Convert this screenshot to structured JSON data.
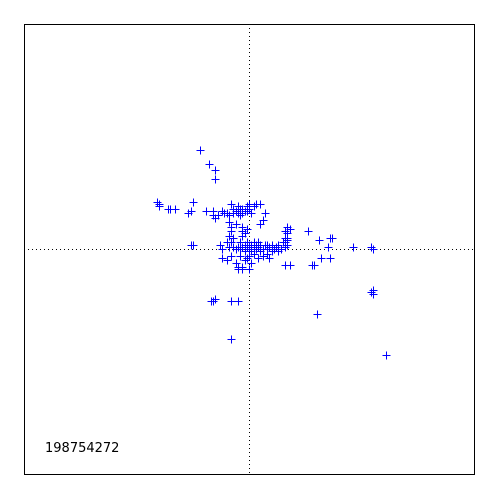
{
  "chart_data": {
    "type": "scatter",
    "title": "",
    "xlabel": "",
    "ylabel": "",
    "xlim": [
      -1,
      1
    ],
    "ylim": [
      -1,
      1
    ],
    "grid": false,
    "zero_lines": true,
    "marker": "plus",
    "marker_color": "#0000ff",
    "annotation": "198754272",
    "series": [
      {
        "color": "#0000ff",
        "points": [
          [
            -0.22,
            0.44
          ],
          [
            -0.18,
            0.38
          ],
          [
            -0.15,
            0.35
          ],
          [
            -0.15,
            0.31
          ],
          [
            -0.41,
            0.21
          ],
          [
            -0.4,
            0.2
          ],
          [
            -0.4,
            0.19
          ],
          [
            -0.36,
            0.18
          ],
          [
            -0.35,
            0.18
          ],
          [
            -0.33,
            0.18
          ],
          [
            -0.27,
            0.16
          ],
          [
            -0.26,
            0.17
          ],
          [
            -0.25,
            0.21
          ],
          [
            -0.25,
            0.02
          ],
          [
            -0.19,
            0.17
          ],
          [
            -0.16,
            0.17
          ],
          [
            -0.16,
            0.15
          ],
          [
            -0.15,
            0.14
          ],
          [
            -0.14,
            0.15
          ],
          [
            -0.12,
            0.17
          ],
          [
            -0.11,
            0.16
          ],
          [
            -0.1,
            0.16
          ],
          [
            -0.09,
            0.15
          ],
          [
            -0.08,
            0.2
          ],
          [
            -0.07,
            0.18
          ],
          [
            -0.07,
            0.16
          ],
          [
            -0.06,
            0.17
          ],
          [
            -0.05,
            0.19
          ],
          [
            -0.05,
            0.16
          ],
          [
            -0.04,
            0.18
          ],
          [
            -0.04,
            0.15
          ],
          [
            -0.03,
            0.18
          ],
          [
            -0.03,
            0.16
          ],
          [
            -0.02,
            0.17
          ],
          [
            -0.01,
            0.19
          ],
          [
            -0.01,
            0.17
          ],
          [
            0.0,
            0.18
          ],
          [
            0.0,
            0.2
          ],
          [
            0.01,
            0.16
          ],
          [
            0.02,
            0.19
          ],
          [
            0.03,
            0.2
          ],
          [
            0.05,
            0.2
          ],
          [
            0.06,
            0.13
          ],
          [
            0.05,
            0.11
          ],
          [
            0.07,
            0.16
          ],
          [
            -0.09,
            0.12
          ],
          [
            -0.08,
            0.1
          ],
          [
            -0.08,
            0.08
          ],
          [
            -0.09,
            0.06
          ],
          [
            -0.07,
            0.05
          ],
          [
            -0.06,
            0.11
          ],
          [
            -0.03,
            0.1
          ],
          [
            -0.03,
            0.08
          ],
          [
            -0.02,
            0.07
          ],
          [
            -0.01,
            0.09
          ],
          [
            -0.03,
            0.06
          ],
          [
            -0.13,
            0.02
          ],
          [
            -0.12,
            0.0
          ],
          [
            -0.1,
            0.03
          ],
          [
            -0.09,
            0.01
          ],
          [
            -0.08,
            0.03
          ],
          [
            -0.07,
            0.01
          ],
          [
            -0.06,
            0.0
          ],
          [
            -0.05,
            0.01
          ],
          [
            -0.04,
            0.03
          ],
          [
            -0.04,
            0.0
          ],
          [
            -0.03,
            0.01
          ],
          [
            -0.02,
            0.02
          ],
          [
            -0.02,
            -0.01
          ],
          [
            -0.01,
            0.01
          ],
          [
            -0.01,
            0.03
          ],
          [
            0.0,
            0.0
          ],
          [
            0.0,
            0.02
          ],
          [
            0.01,
            -0.01
          ],
          [
            0.01,
            0.02
          ],
          [
            0.02,
            0.01
          ],
          [
            0.02,
            0.03
          ],
          [
            0.03,
            0.0
          ],
          [
            0.03,
            0.02
          ],
          [
            0.04,
            0.01
          ],
          [
            0.04,
            0.03
          ],
          [
            0.05,
            0.02
          ],
          [
            0.05,
            -0.01
          ],
          [
            0.06,
            0.0
          ],
          [
            0.07,
            0.02
          ],
          [
            0.08,
            0.0
          ],
          [
            0.08,
            0.02
          ],
          [
            0.09,
            0.01
          ],
          [
            0.1,
            0.02
          ],
          [
            0.1,
            -0.01
          ],
          [
            0.11,
            0.0
          ],
          [
            0.12,
            0.01
          ],
          [
            0.13,
            0.02
          ],
          [
            0.13,
            -0.01
          ],
          [
            0.14,
            0.0
          ],
          [
            -0.12,
            -0.04
          ],
          [
            -0.1,
            -0.05
          ],
          [
            -0.08,
            -0.03
          ],
          [
            -0.06,
            -0.06
          ],
          [
            -0.04,
            -0.03
          ],
          [
            -0.03,
            -0.08
          ],
          [
            -0.02,
            -0.05
          ],
          [
            -0.01,
            -0.04
          ],
          [
            0.0,
            -0.03
          ],
          [
            0.01,
            -0.06
          ],
          [
            0.02,
            -0.02
          ],
          [
            0.04,
            -0.04
          ],
          [
            0.06,
            -0.03
          ],
          [
            0.08,
            -0.02
          ],
          [
            0.09,
            -0.04
          ],
          [
            0.15,
            0.03
          ],
          [
            0.16,
            0.01
          ],
          [
            0.17,
            0.02
          ],
          [
            0.16,
            0.05
          ],
          [
            0.17,
            0.07
          ],
          [
            0.16,
            0.08
          ],
          [
            0.17,
            0.05
          ],
          [
            0.18,
            0.09
          ],
          [
            0.17,
            0.1
          ],
          [
            0.16,
            0.03
          ],
          [
            0.17,
            0.04
          ],
          [
            -0.03,
            -0.09
          ],
          [
            0.0,
            -0.09
          ],
          [
            -0.05,
            -0.08
          ],
          [
            0.26,
            0.08
          ],
          [
            0.36,
            0.05
          ],
          [
            0.37,
            0.05
          ],
          [
            0.31,
            0.04
          ],
          [
            0.35,
            0.01
          ],
          [
            0.46,
            0.01
          ],
          [
            0.54,
            0.01
          ],
          [
            0.55,
            0.0
          ],
          [
            0.16,
            -0.07
          ],
          [
            0.18,
            -0.07
          ],
          [
            0.28,
            -0.07
          ],
          [
            0.29,
            -0.07
          ],
          [
            0.32,
            -0.04
          ],
          [
            0.36,
            -0.04
          ],
          [
            -0.26,
            0.02
          ],
          [
            -0.05,
            -0.09
          ],
          [
            -0.17,
            -0.23
          ],
          [
            -0.16,
            -0.23
          ],
          [
            -0.15,
            -0.22
          ],
          [
            -0.08,
            -0.23
          ],
          [
            -0.05,
            -0.23
          ],
          [
            -0.08,
            -0.4
          ],
          [
            0.3,
            -0.29
          ],
          [
            0.54,
            -0.19
          ],
          [
            0.55,
            -0.18
          ],
          [
            0.55,
            -0.2
          ],
          [
            0.61,
            -0.47
          ]
        ]
      }
    ]
  }
}
